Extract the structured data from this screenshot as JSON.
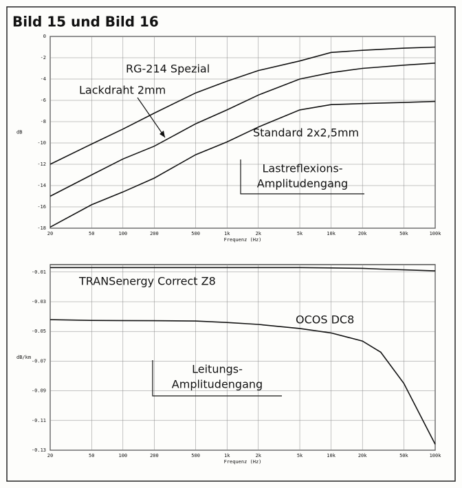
{
  "title": "Bild 15 und Bild 16",
  "chart_data": [
    {
      "type": "line",
      "xlabel": "Frequenz (Hz)",
      "ylabel": "dB",
      "log_x": true,
      "grid": true,
      "color": "#111111",
      "x": [
        20,
        50,
        100,
        200,
        500,
        1000,
        2000,
        5000,
        10000,
        20000,
        50000,
        100000
      ],
      "xlim": [
        20,
        100000
      ],
      "xticks": [
        20,
        50,
        100,
        200,
        500,
        {
          "value": 1000,
          "label": "1k"
        },
        {
          "value": 2000,
          "label": "2k"
        },
        {
          "value": 5000,
          "label": "5k"
        },
        {
          "value": 10000,
          "label": "10k"
        },
        {
          "value": 20000,
          "label": "20k"
        },
        {
          "value": 50000,
          "label": "50k"
        },
        {
          "value": 100000,
          "label": "100k"
        }
      ],
      "ylim": [
        -18,
        0
      ],
      "yticks": [
        0,
        -2,
        -4,
        -6,
        -8,
        -10,
        -12,
        -14,
        -16,
        -18
      ],
      "series": [
        {
          "name": "RG-214 Spezial",
          "color": "#111111",
          "values": [
            -12,
            -10.1,
            -8.7,
            -7.2,
            -5.3,
            -4.2,
            -3.2,
            -2.3,
            -1.5,
            -1.3,
            -1.1,
            -1.0
          ]
        },
        {
          "name": "Lackdraht 2mm",
          "color": "#111111",
          "values": [
            -15,
            -13,
            -11.5,
            -10.3,
            -8.2,
            -6.9,
            -5.5,
            -4.0,
            -3.4,
            -3.0,
            -2.7,
            -2.5
          ]
        },
        {
          "name": "Standard 2x2,5mm",
          "color": "#111111",
          "values": [
            -17.9,
            -15.8,
            -14.6,
            -13.3,
            -11.1,
            -9.9,
            -8.5,
            -6.9,
            -6.4,
            -6.3,
            -6.2,
            -6.1
          ]
        }
      ],
      "annotation": [
        "Lastreflexions-",
        "Amplitudengang"
      ]
    },
    {
      "type": "line",
      "xlabel": "Frequenz (Hz)",
      "ylabel": "dB/km",
      "log_x": true,
      "grid": true,
      "color": "#111111",
      "x": [
        20,
        50,
        100,
        200,
        500,
        1000,
        2000,
        5000,
        10000,
        20000,
        30000,
        50000,
        100000
      ],
      "xlim": [
        20,
        100000
      ],
      "xticks": [
        20,
        50,
        100,
        200,
        500,
        {
          "value": 1000,
          "label": "1k"
        },
        {
          "value": 2000,
          "label": "2k"
        },
        {
          "value": 5000,
          "label": "5k"
        },
        {
          "value": 10000,
          "label": "10k"
        },
        {
          "value": 20000,
          "label": "20k"
        },
        {
          "value": 50000,
          "label": "50k"
        },
        {
          "value": 100000,
          "label": "100k"
        }
      ],
      "ylim": [
        -0.13,
        -0.005
      ],
      "yticks": [
        -0.01,
        -0.03,
        -0.05,
        -0.07,
        -0.09,
        -0.11,
        -0.13
      ],
      "series": [
        {
          "name": "TRANSenergy Correct Z8",
          "color": "#111111",
          "values": [
            -0.007,
            -0.007,
            -0.007,
            -0.007,
            -0.007,
            -0.007,
            -0.007,
            -0.007,
            -0.0072,
            -0.0075,
            -0.008,
            -0.0085,
            -0.0092
          ]
        },
        {
          "name": "OCOS DC8",
          "color": "#111111",
          "values": [
            -0.0421,
            -0.0426,
            -0.0427,
            -0.0428,
            -0.043,
            -0.044,
            -0.0453,
            -0.048,
            -0.051,
            -0.0565,
            -0.064,
            -0.085,
            -0.126
          ]
        }
      ],
      "annotation": [
        "Leitungs-",
        "Amplitudengang"
      ]
    }
  ]
}
